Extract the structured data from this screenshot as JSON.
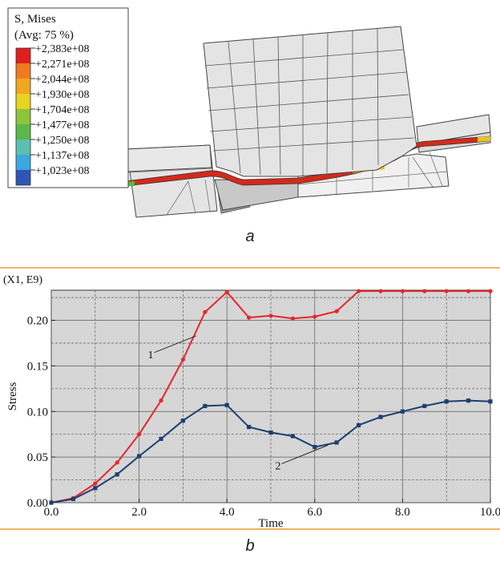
{
  "figure_a": {
    "legend": {
      "title": "S, Mises",
      "subtitle": "(Avg: 75 %)",
      "entries": [
        "+2,383e+08",
        "+2,271e+08",
        "+2,044e+08",
        "+1,930e+08",
        "+1,704e+08",
        "+1,477e+08",
        "+1,250e+08",
        "+1,137e+08",
        "+1,023e+08"
      ],
      "colors": [
        "#e0201c",
        "#f07a20",
        "#f0a820",
        "#e8d41c",
        "#8cc43c",
        "#5ab84a",
        "#5cc0b0",
        "#3aa8e0",
        "#2e56b8"
      ]
    },
    "caption": "a",
    "colors": {
      "mesh_fill": "#e4e4e4",
      "mesh_line": "#444444",
      "strip": "#d42a1a"
    }
  },
  "chart_data": {
    "type": "line",
    "caption": "b",
    "scale_note": "(X1, E9)",
    "xlabel": "Time",
    "ylabel": "Stress",
    "xlim": [
      0,
      10
    ],
    "ylim": [
      0,
      0.233
    ],
    "x_ticks": [
      "0.0",
      "2.0",
      "4.0",
      "6.0",
      "8.0",
      "10.0"
    ],
    "x_tick_values": [
      0,
      2,
      4,
      6,
      8,
      10
    ],
    "y_ticks": [
      "0.00",
      "0.05",
      "0.10",
      "0.15",
      "0.20"
    ],
    "y_tick_values": [
      0,
      0.05,
      0.1,
      0.15,
      0.2
    ],
    "grid": true,
    "series": [
      {
        "name": "1",
        "color": "#e8262a",
        "x": [
          0,
          0.5,
          1.0,
          1.5,
          2.0,
          2.5,
          3.0,
          3.5,
          4.0,
          4.5,
          5.0,
          5.5,
          6.0,
          6.5,
          7.0,
          7.5,
          8.0,
          8.5,
          9.0,
          9.5,
          10.0
        ],
        "y": [
          0,
          0.005,
          0.021,
          0.044,
          0.075,
          0.112,
          0.157,
          0.209,
          0.231,
          0.203,
          0.205,
          0.202,
          0.204,
          0.21,
          0.232,
          0.232,
          0.232,
          0.232,
          0.232,
          0.232,
          0.232
        ]
      },
      {
        "name": "2",
        "color": "#1d3f72",
        "x": [
          0,
          0.5,
          1.0,
          1.5,
          2.0,
          2.5,
          3.0,
          3.5,
          4.0,
          4.5,
          5.0,
          5.5,
          6.0,
          6.5,
          7.0,
          7.5,
          8.0,
          8.5,
          9.0,
          9.5,
          10.0
        ],
        "y": [
          0,
          0.004,
          0.016,
          0.031,
          0.051,
          0.07,
          0.09,
          0.106,
          0.107,
          0.083,
          0.077,
          0.073,
          0.061,
          0.066,
          0.085,
          0.094,
          0.1,
          0.106,
          0.111,
          0.112,
          0.111
        ]
      }
    ],
    "annotations": [
      {
        "text": "1",
        "series": "1"
      },
      {
        "text": "2",
        "series": "2"
      }
    ],
    "colors": {
      "plot_bg": "#d6d6d6",
      "grid": "#5a5a5a",
      "separator": "#f09a2a"
    }
  }
}
